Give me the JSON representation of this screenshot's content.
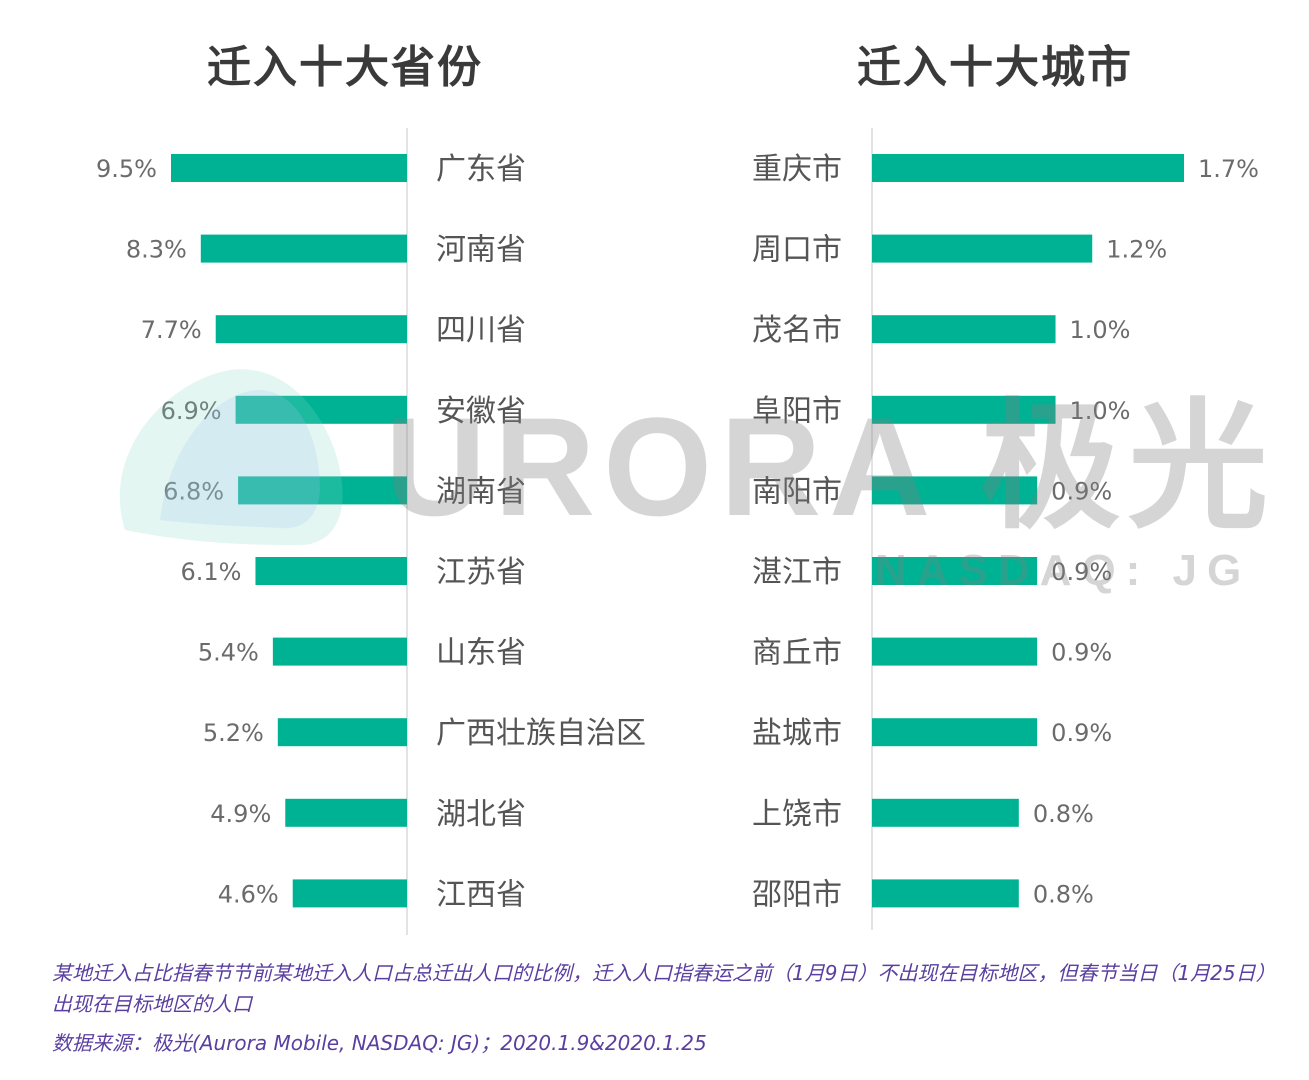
{
  "chart_data": [
    {
      "type": "bar",
      "orientation": "horizontal",
      "title": "迁入十大省份",
      "categories": [
        "广东省",
        "河南省",
        "四川省",
        "安徽省",
        "湖南省",
        "江苏省",
        "山东省",
        "广西壮族自治区",
        "湖北省",
        "江西省"
      ],
      "values": [
        9.5,
        8.3,
        7.7,
        6.9,
        6.8,
        6.1,
        5.4,
        5.2,
        4.9,
        4.6
      ],
      "value_labels": [
        "9.5%",
        "8.3%",
        "7.7%",
        "6.9%",
        "6.8%",
        "6.1%",
        "5.4%",
        "5.2%",
        "4.9%",
        "4.6%"
      ],
      "bar_direction": "right-to-left",
      "color": "#00b294"
    },
    {
      "type": "bar",
      "orientation": "horizontal",
      "title": "迁入十大城市",
      "categories": [
        "重庆市",
        "周口市",
        "茂名市",
        "阜阳市",
        "南阳市",
        "湛江市",
        "商丘市",
        "盐城市",
        "上饶市",
        "邵阳市"
      ],
      "values": [
        1.7,
        1.2,
        1.0,
        1.0,
        0.9,
        0.9,
        0.9,
        0.9,
        0.8,
        0.8
      ],
      "value_labels": [
        "1.7%",
        "1.2%",
        "1.0%",
        "1.0%",
        "0.9%",
        "0.9%",
        "0.9%",
        "0.9%",
        "0.8%",
        "0.8%"
      ],
      "bar_direction": "left-to-right",
      "color": "#00b294"
    }
  ],
  "notes": {
    "definition": "某地迁入占比指春节节前某地迁入人口占总迁出人口的比例，迁入人口指春运之前（1月9日）不出现在目标地区，但春节当日（1月25日）出现在目标地区的人口",
    "source": "数据来源：极光(Aurora Mobile, NASDAQ: JG)；2020.1.9&2020.1.25"
  },
  "watermark": {
    "logo": "URORA 极光",
    "ticker": "NASDAQ: JG"
  }
}
